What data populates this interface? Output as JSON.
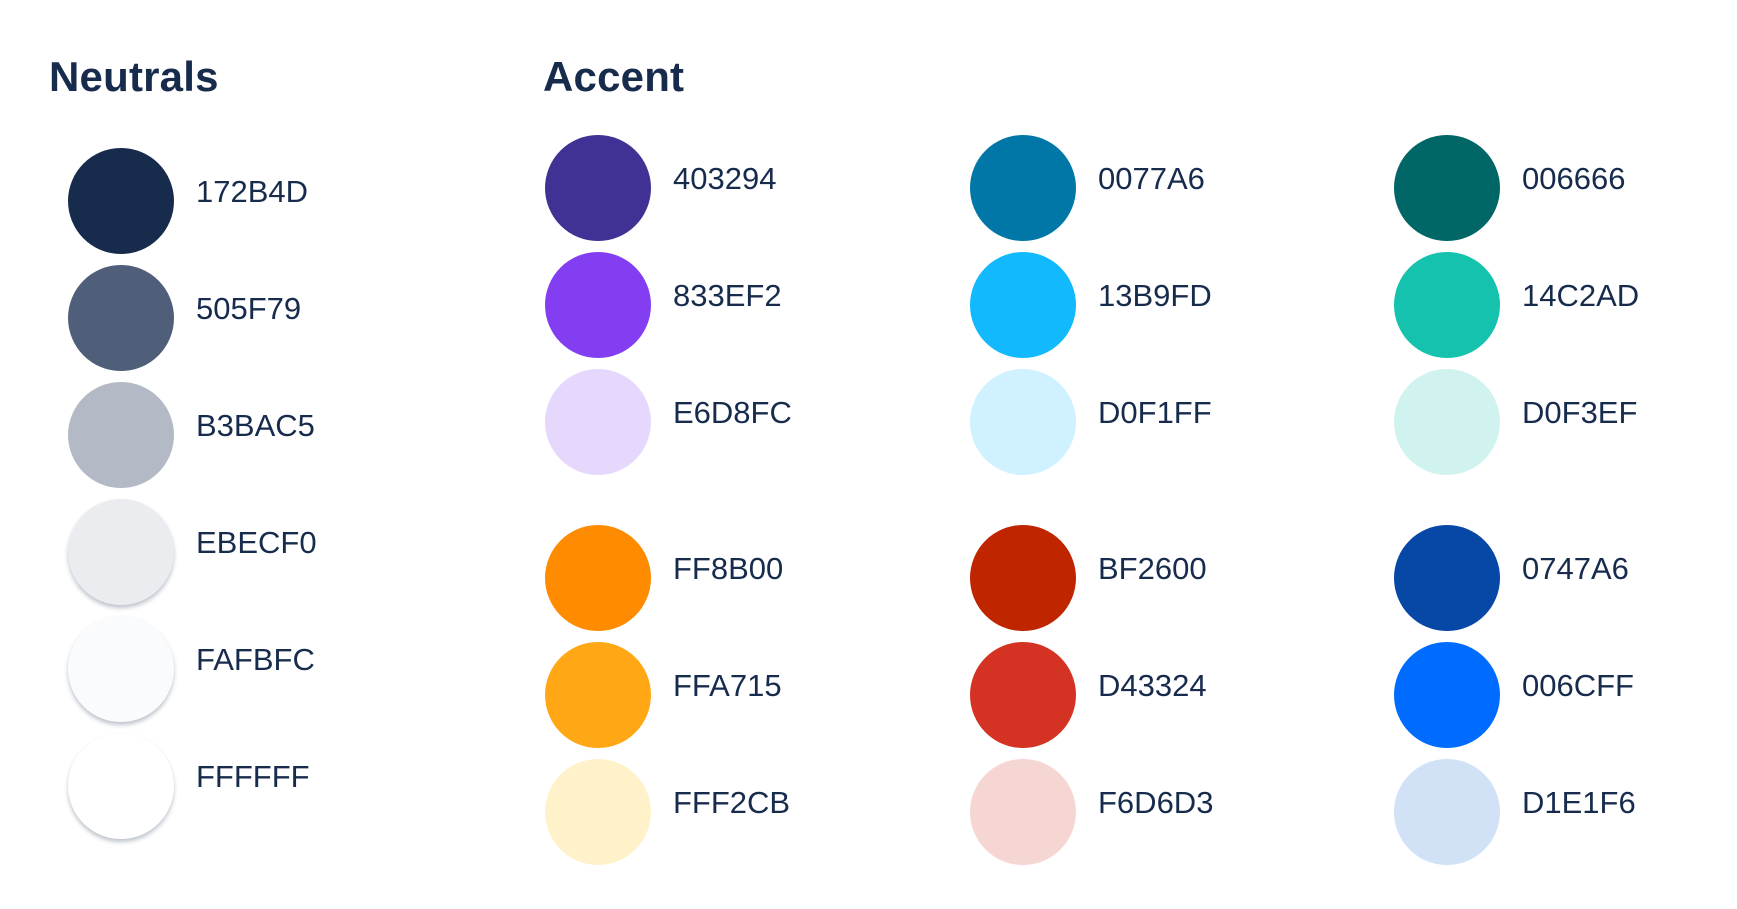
{
  "neutrals": {
    "title": "Neutrals",
    "colors": [
      {
        "hex": "172B4D",
        "color": "#172B4D"
      },
      {
        "hex": "505F79",
        "color": "#505F79"
      },
      {
        "hex": "B3BAC5",
        "color": "#B3BAC5"
      },
      {
        "hex": "EBECF0",
        "color": "#EBECF0"
      },
      {
        "hex": "FAFBFC",
        "color": "#FAFBFC"
      },
      {
        "hex": "FFFFFF",
        "color": "#FFFFFF"
      }
    ]
  },
  "accent": {
    "title": "Accent",
    "columns": [
      {
        "colors": [
          {
            "hex": "403294",
            "color": "#403294"
          },
          {
            "hex": "833EF2",
            "color": "#833EF2"
          },
          {
            "hex": "E6D8FC",
            "color": "#E6D8FC"
          },
          {
            "hex": "FF8B00",
            "color": "#FF8B00"
          },
          {
            "hex": "FFA715",
            "color": "#FFA715"
          },
          {
            "hex": "FFF2CB",
            "color": "#FFF2CB"
          }
        ]
      },
      {
        "colors": [
          {
            "hex": "0077A6",
            "color": "#0077A6"
          },
          {
            "hex": "13B9FD",
            "color": "#13B9FD"
          },
          {
            "hex": "D0F1FF",
            "color": "#D0F1FF"
          },
          {
            "hex": "BF2600",
            "color": "#BF2600"
          },
          {
            "hex": "D43324",
            "color": "#D43324"
          },
          {
            "hex": "F6D6D3",
            "color": "#F6D6D3"
          }
        ]
      },
      {
        "colors": [
          {
            "hex": "006666",
            "color": "#006666"
          },
          {
            "hex": "14C2AD",
            "color": "#14C2AD"
          },
          {
            "hex": "D0F3EF",
            "color": "#D0F3EF"
          },
          {
            "hex": "0747A6",
            "color": "#0747A6"
          },
          {
            "hex": "006CFF",
            "color": "#006CFF"
          },
          {
            "hex": "D1E1F6",
            "color": "#D1E1F6"
          }
        ]
      }
    ]
  }
}
